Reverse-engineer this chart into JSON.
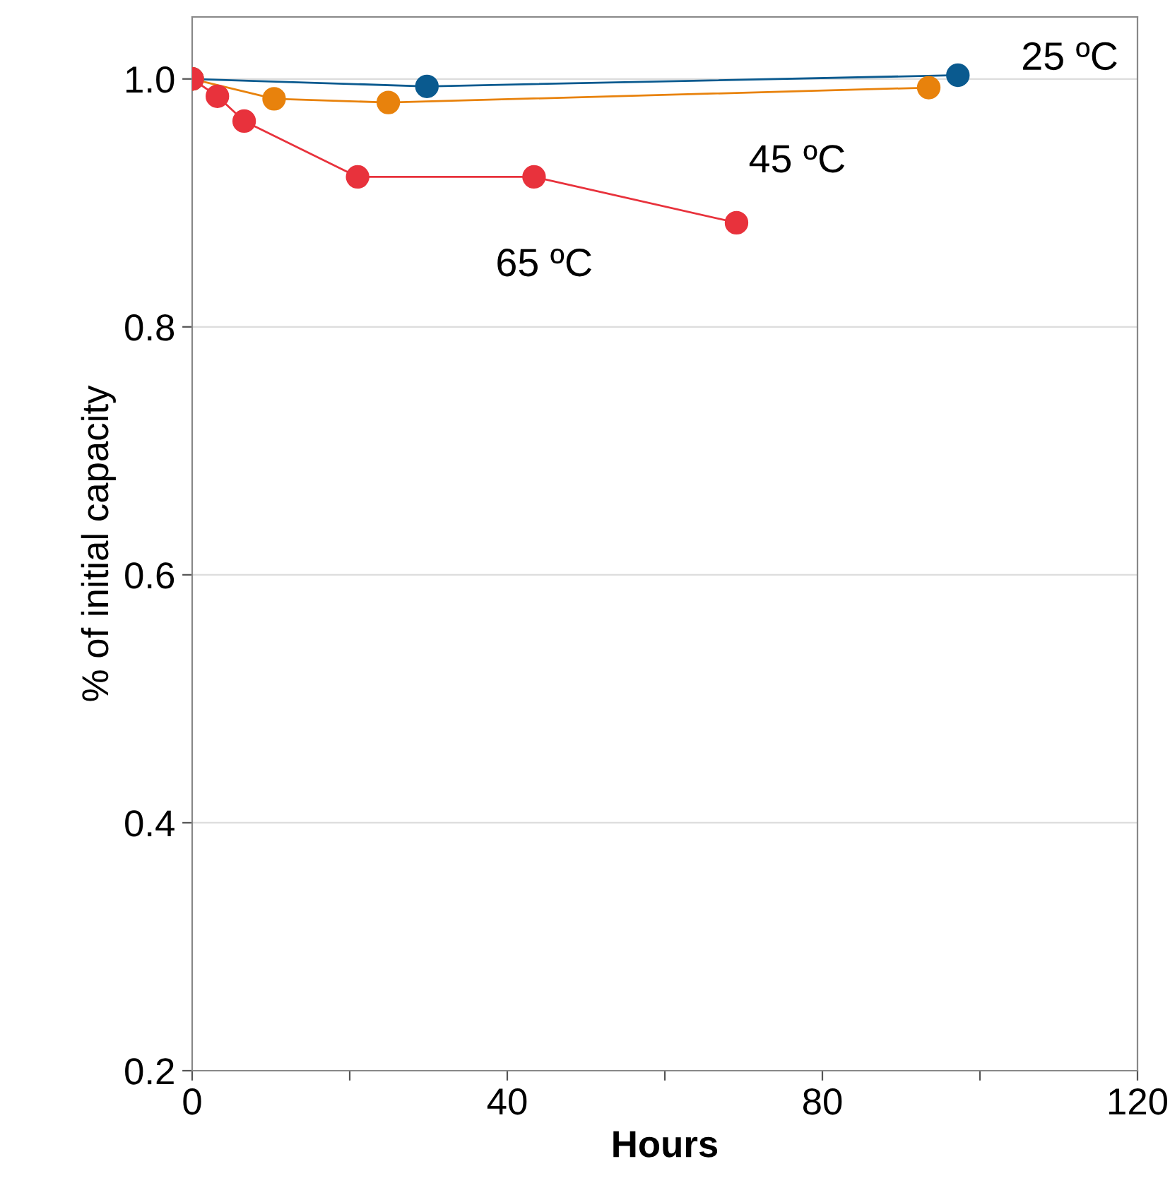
{
  "chart_data": {
    "type": "line",
    "xlabel": "Hours",
    "ylabel": "% of initial capacity",
    "series": [
      {
        "name": "25 ºC",
        "color": "#0a5a8f",
        "x": [
          0,
          29.8,
          97.2
        ],
        "values": [
          1.0,
          0.994,
          1.003
        ]
      },
      {
        "name": "45 ºC",
        "color": "#e8820c",
        "x": [
          0,
          10.4,
          24.9,
          93.5
        ],
        "values": [
          1.0,
          0.984,
          0.981,
          0.993
        ]
      },
      {
        "name": "65 ºC",
        "color": "#e8323c",
        "x": [
          0,
          3.2,
          6.6,
          21.0,
          43.4,
          69.1
        ],
        "values": [
          1.0,
          0.986,
          0.966,
          0.921,
          0.921,
          0.884
        ]
      }
    ],
    "xlim": [
      0,
      120
    ],
    "xticks": [
      0,
      {
        "value": 20,
        "label": null
      },
      40,
      {
        "value": 60,
        "label": null
      },
      80,
      {
        "value": 100,
        "label": null
      },
      120
    ],
    "ylim": [
      0.2,
      1.05
    ],
    "yticks": [
      0.2,
      0.4,
      0.6,
      0.8,
      {
        "value": 1.0,
        "label": "1.0"
      }
    ],
    "grid": "y",
    "marker": "circle",
    "line_style": "solid"
  }
}
